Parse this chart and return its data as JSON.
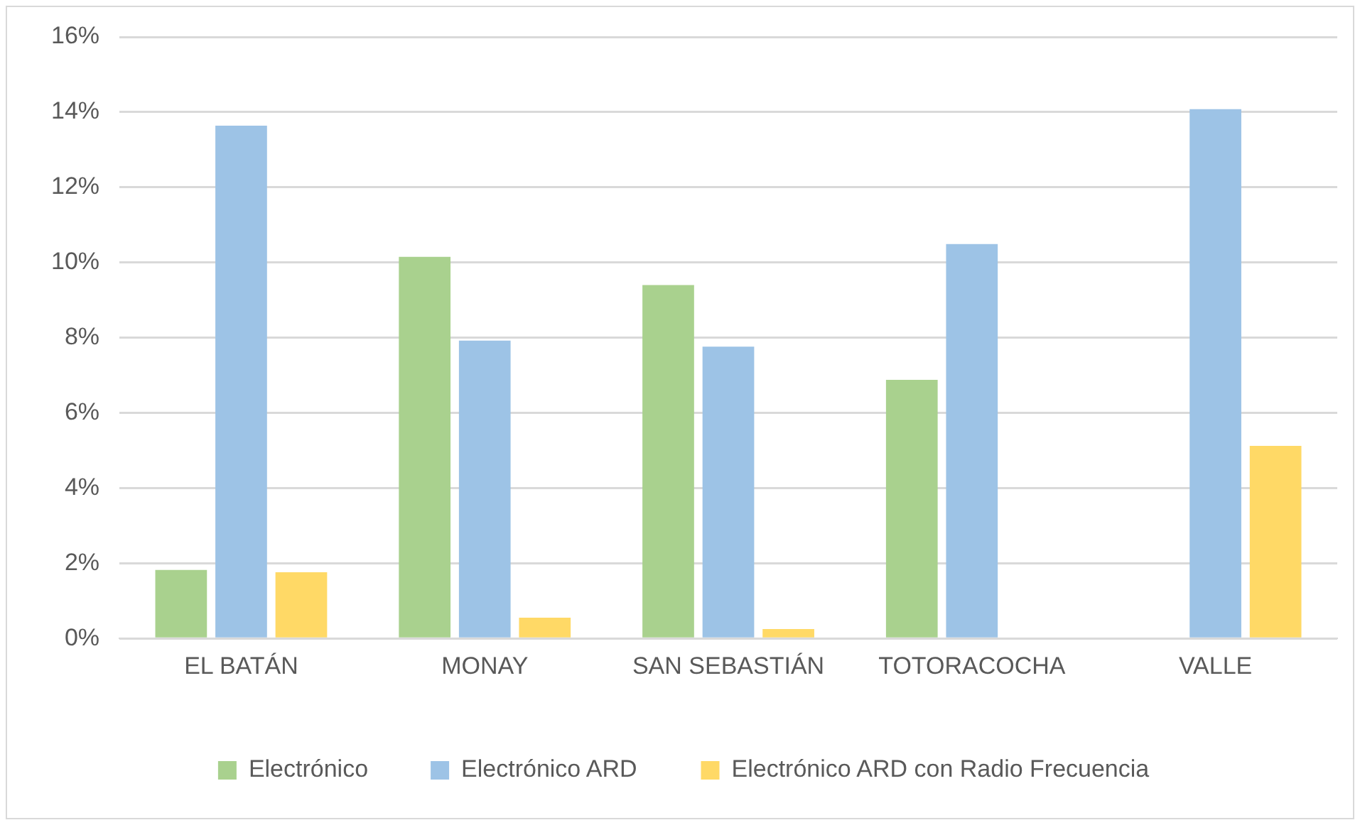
{
  "chart_data": {
    "type": "bar",
    "categories": [
      "EL BATÁN",
      "MONAY",
      "SAN SEBASTIÁN",
      "TOTORACOCHA",
      "VALLE"
    ],
    "series": [
      {
        "name": "Electrónico",
        "color": "#a9d18e",
        "values": [
          1.82,
          10.15,
          9.4,
          6.88,
          0
        ]
      },
      {
        "name": "Electrónico ARD",
        "color": "#9dc3e6",
        "values": [
          13.64,
          7.92,
          7.76,
          10.49,
          14.08
        ]
      },
      {
        "name": "Electrónico ARD con Radio Frecuencia",
        "color": "#ffd966",
        "values": [
          1.76,
          0.55,
          0.25,
          0,
          5.12
        ]
      }
    ],
    "ylim": [
      0,
      16
    ],
    "yticks": [
      {
        "value": 0,
        "label": "0%"
      },
      {
        "value": 2,
        "label": "2%"
      },
      {
        "value": 4,
        "label": "4%"
      },
      {
        "value": 6,
        "label": "6%"
      },
      {
        "value": 8,
        "label": "8%"
      },
      {
        "value": 10,
        "label": "10%"
      },
      {
        "value": 12,
        "label": "12%"
      },
      {
        "value": 14,
        "label": "14%"
      },
      {
        "value": 16,
        "label": "16%"
      }
    ],
    "grid": "y",
    "legend": "bottom"
  }
}
